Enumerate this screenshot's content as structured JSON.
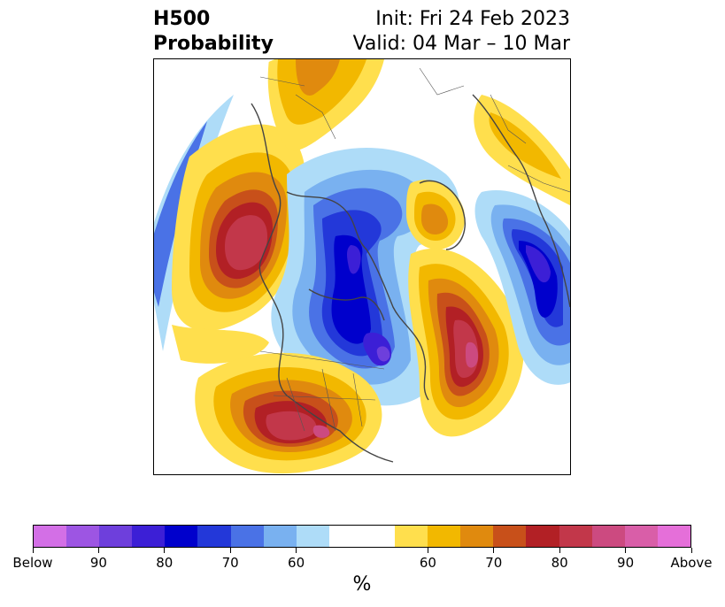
{
  "title": {
    "left_line1": "H500",
    "left_line2": "Probability",
    "right_line1": "Init: Fri 24 Feb 2023",
    "right_line2": "Valid: 04 Mar – 10 Mar"
  },
  "colorbar": {
    "units": "%",
    "colors": [
      "#d36fe6",
      "#9d55e3",
      "#6e3fdc",
      "#3c1fd6",
      "#0000cc",
      "#2338d9",
      "#4a72e6",
      "#79b1f0",
      "#aedcf8",
      "#ffffff",
      "#ffffff",
      "#ffdf4d",
      "#f2b800",
      "#e08a0e",
      "#c8501a",
      "#b22025",
      "#c2374a",
      "#cc4a80",
      "#d95ea8",
      "#e56fd9"
    ],
    "tick_labels": [
      "Below",
      "90",
      "80",
      "70",
      "60",
      "60",
      "70",
      "80",
      "90",
      "Above"
    ]
  },
  "map": {
    "region": "Northern Hemisphere polar projection",
    "below_color": "#0000cc",
    "above_color": "#b22025"
  }
}
